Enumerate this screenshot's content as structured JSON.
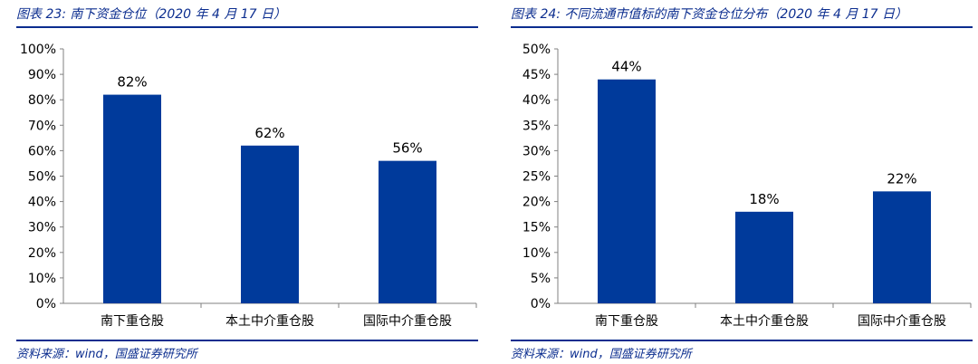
{
  "colors": {
    "accent": "#0b2d8f",
    "bar": "#003a9b"
  },
  "charts": [
    {
      "title": "图表 23:  南下资金仓位（2020 年 4 月 17 日）",
      "source": "资料来源：wind，国盛证券研究所"
    },
    {
      "title": "图表 24:  不同流通市值标的南下资金仓位分布（2020 年 4 月 17 日）",
      "source": "资料来源：wind，国盛证券研究所"
    }
  ],
  "chart_data": [
    {
      "type": "bar",
      "categories": [
        "南下重仓股",
        "本土中介重仓股",
        "国际中介重仓股"
      ],
      "values": [
        82,
        62,
        56
      ],
      "data_labels": [
        "82%",
        "62%",
        "56%"
      ],
      "ylim": [
        0,
        100
      ],
      "yticks": [
        "0%",
        "10%",
        "20%",
        "30%",
        "40%",
        "50%",
        "60%",
        "70%",
        "80%",
        "90%",
        "100%"
      ],
      "grid": false
    },
    {
      "type": "bar",
      "categories": [
        "南下重仓股",
        "本土中介重仓股",
        "国际中介重仓股"
      ],
      "values": [
        44,
        18,
        22
      ],
      "data_labels": [
        "44%",
        "18%",
        "22%"
      ],
      "ylim": [
        0,
        50
      ],
      "yticks": [
        "0%",
        "5%",
        "10%",
        "15%",
        "20%",
        "25%",
        "30%",
        "35%",
        "40%",
        "45%",
        "50%"
      ],
      "grid": false
    }
  ]
}
